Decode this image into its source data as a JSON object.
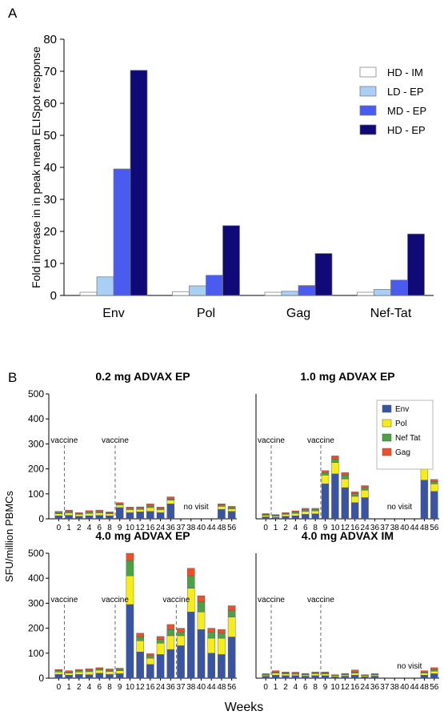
{
  "chart_data": [
    {
      "panel_label": "A",
      "type": "bar",
      "ylabel": "Fold increase in in peak mean ELISpot response",
      "ylim": [
        0,
        80
      ],
      "yticks": [
        0,
        10,
        20,
        30,
        40,
        50,
        60,
        70,
        80
      ],
      "categories": [
        "Env",
        "Pol",
        "Gag",
        "Nef-Tat"
      ],
      "legend_position": "right",
      "series": [
        {
          "name": "HD - IM",
          "color": "#ffffff",
          "values": [
            1,
            1.2,
            1,
            1
          ]
        },
        {
          "name": "LD - EP",
          "color": "#a9cff5",
          "values": [
            5.8,
            3,
            1.3,
            1.9
          ]
        },
        {
          "name": "MD - EP",
          "color": "#4a5cf0",
          "values": [
            39.5,
            6.3,
            3.1,
            4.8
          ]
        },
        {
          "name": "HD - EP",
          "color": "#0f0a78",
          "values": [
            70.3,
            21.8,
            13.1,
            19.2
          ]
        }
      ]
    },
    {
      "panel_label": "B",
      "type": "bar",
      "stacked": true,
      "ylabel": "SFU/million PBMCs",
      "xlabel": "Weeks",
      "ylim": [
        0,
        500
      ],
      "yticks": [
        0,
        100,
        200,
        300,
        400,
        500
      ],
      "categories": [
        "0",
        "1",
        "2",
        "4",
        "6",
        "8",
        "9",
        "10",
        "12",
        "16",
        "24",
        "36",
        "37",
        "38",
        "40",
        "44",
        "48",
        "56"
      ],
      "legend_position": "top-right",
      "series_names": [
        "Env",
        "Pol",
        "Nef Tat",
        "Gag"
      ],
      "series_colors": [
        "#3a54a4",
        "#f6ec1a",
        "#4ca145",
        "#e9512d"
      ],
      "panels": [
        {
          "title": "0.2 mg ADVAX EP",
          "vaccine_labels": [
            {
              "label": "vaccine",
              "week": "0"
            },
            {
              "label": "vaccine",
              "week": "8"
            }
          ],
          "note": {
            "text": "no visit",
            "week": "38"
          },
          "values": [
            [
              12,
              8,
              5,
              5
            ],
            [
              14,
              10,
              6,
              5
            ],
            [
              10,
              8,
              4,
              3
            ],
            [
              12,
              10,
              6,
              5
            ],
            [
              14,
              10,
              5,
              6
            ],
            [
              12,
              8,
              4,
              4
            ],
            [
              45,
              10,
              5,
              5
            ],
            [
              25,
              12,
              5,
              5
            ],
            [
              28,
              10,
              5,
              5
            ],
            [
              30,
              15,
              6,
              9
            ],
            [
              25,
              12,
              5,
              5
            ],
            [
              60,
              15,
              5,
              8
            ],
            null,
            null,
            null,
            null,
            [
              38,
              12,
              5,
              5
            ],
            [
              30,
              10,
              5,
              5
            ]
          ]
        },
        {
          "title": "1.0 mg ADVAX EP",
          "vaccine_labels": [
            {
              "label": "vaccine",
              "week": "0"
            },
            {
              "label": "vaccine",
              "week": "8"
            }
          ],
          "note": {
            "text": "no visit",
            "week": "38"
          },
          "values": [
            [
              8,
              6,
              4,
              3
            ],
            [
              6,
              5,
              3,
              3
            ],
            [
              10,
              8,
              4,
              3
            ],
            [
              12,
              10,
              5,
              5
            ],
            [
              18,
              12,
              6,
              6
            ],
            [
              20,
              12,
              6,
              4
            ],
            [
              140,
              35,
              10,
              8
            ],
            [
              180,
              45,
              15,
              12
            ],
            [
              125,
              35,
              15,
              10
            ],
            [
              65,
              25,
              10,
              8
            ],
            [
              85,
              30,
              10,
              8
            ],
            null,
            null,
            null,
            null,
            null,
            [
              155,
              50,
              15,
              10
            ],
            [
              110,
              30,
              10,
              8
            ]
          ]
        },
        {
          "title": "4.0 mg ADVAX EP",
          "vaccine_labels": [
            {
              "label": "vaccine",
              "week": "0"
            },
            {
              "label": "vaccine",
              "week": "8"
            },
            {
              "label": "vaccine",
              "week": "36"
            }
          ],
          "values": [
            [
              15,
              10,
              5,
              5
            ],
            [
              12,
              8,
              5,
              5
            ],
            [
              15,
              10,
              5,
              5
            ],
            [
              14,
              12,
              6,
              6
            ],
            [
              20,
              12,
              5,
              5
            ],
            [
              15,
              12,
              5,
              5
            ],
            [
              18,
              12,
              5,
              5
            ],
            [
              295,
              115,
              60,
              30
            ],
            [
              105,
              45,
              15,
              15
            ],
            [
              55,
              25,
              10,
              8
            ],
            [
              95,
              45,
              15,
              12
            ],
            [
              115,
              55,
              25,
              20
            ],
            [
              130,
              40,
              15,
              15
            ],
            [
              265,
              95,
              50,
              30
            ],
            [
              195,
              70,
              40,
              25
            ],
            [
              100,
              60,
              25,
              15
            ],
            [
              95,
              65,
              20,
              15
            ],
            [
              165,
              80,
              25,
              20
            ]
          ]
        },
        {
          "title": "4.0 mg ADVAX IM",
          "vaccine_labels": [
            {
              "label": "vaccine",
              "week": "0"
            },
            {
              "label": "vaccine",
              "week": "8"
            }
          ],
          "note": {
            "text": "no visit",
            "week": "40"
          },
          "values": [
            [
              8,
              4,
              3,
              3
            ],
            [
              12,
              8,
              5,
              5
            ],
            [
              10,
              7,
              4,
              4
            ],
            [
              10,
              6,
              4,
              4
            ],
            [
              8,
              5,
              3,
              3
            ],
            [
              10,
              8,
              3,
              4
            ],
            [
              10,
              7,
              4,
              4
            ],
            [
              6,
              4,
              2,
              2
            ],
            [
              8,
              5,
              3,
              3
            ],
            [
              12,
              8,
              5,
              8
            ],
            [
              6,
              4,
              2,
              2
            ],
            [
              8,
              5,
              3,
              2
            ],
            null,
            null,
            null,
            null,
            [
              12,
              8,
              5,
              5
            ],
            [
              18,
              10,
              6,
              8
            ]
          ]
        }
      ]
    }
  ]
}
